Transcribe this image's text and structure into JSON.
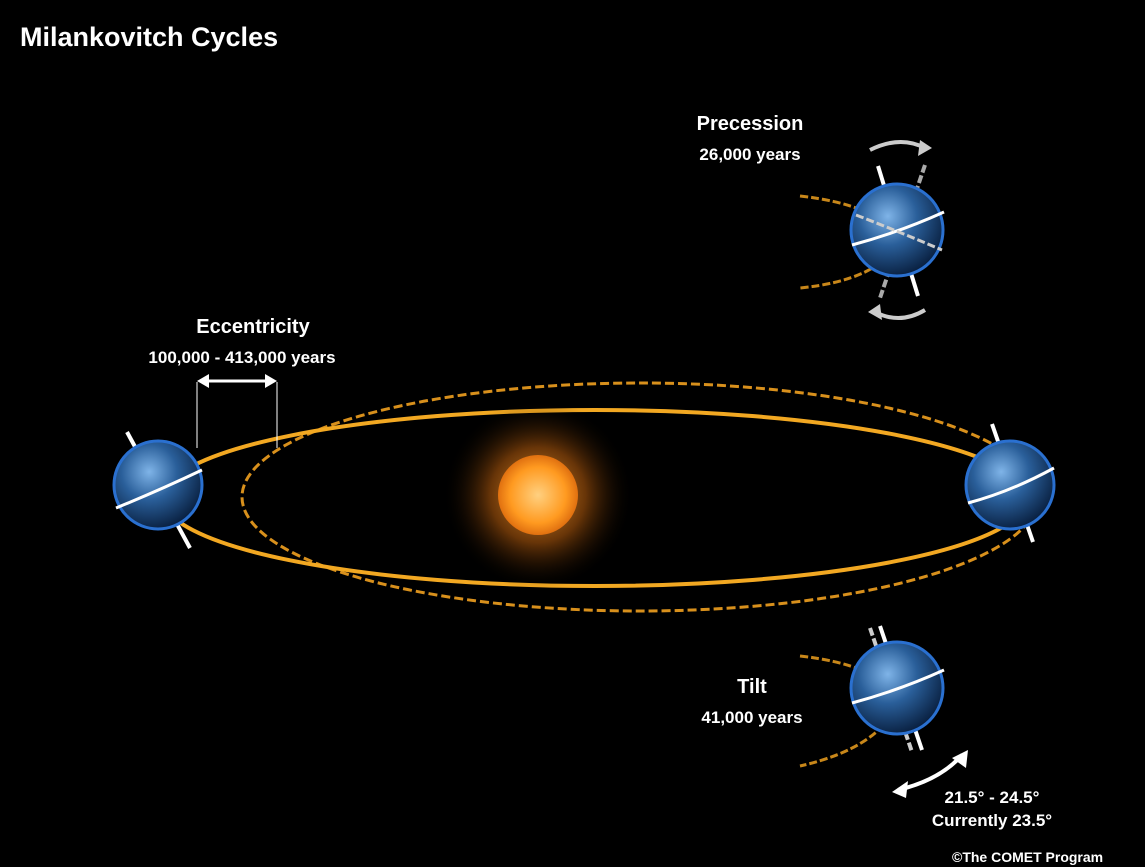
{
  "title": "Milankovitch Cycles",
  "precession": {
    "name": "Precession",
    "period": "26,000 years"
  },
  "eccentricity": {
    "name": "Eccentricity",
    "period": "100,000 - 413,000 years"
  },
  "tilt": {
    "name": "Tilt",
    "period": "41,000 years",
    "range": "21.5° - 24.5°",
    "current": "Currently 23.5°"
  },
  "credit": "©The COMET Program"
}
